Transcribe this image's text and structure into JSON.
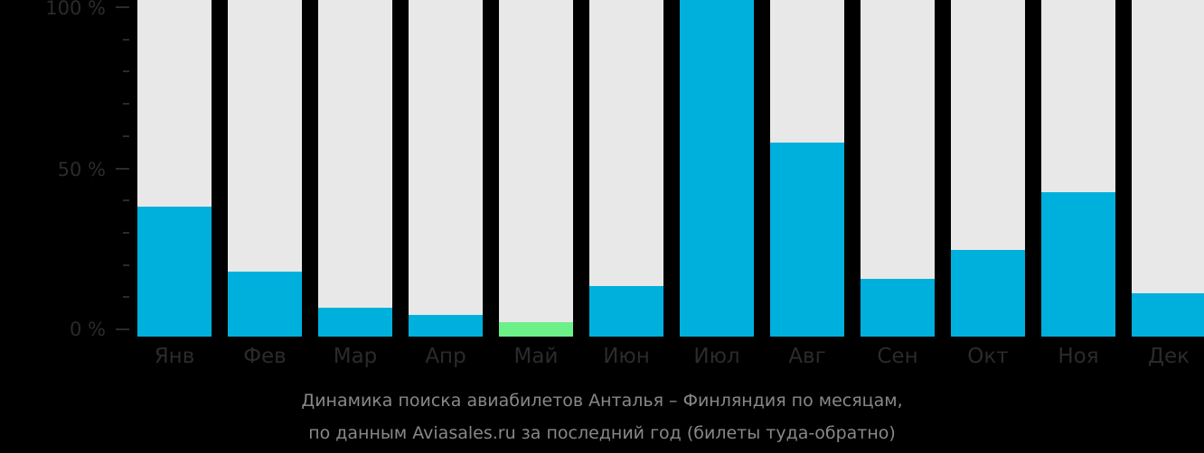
{
  "chart_data": {
    "type": "bar",
    "title": "Динамика поиска авиабилетов Анталья – Финляндия по месяцам, по данным Aviasales.ru за последний год (билеты туда-обратно)",
    "xlabel": "",
    "ylabel": "",
    "ylim": [
      0,
      100
    ],
    "yticks": [
      "0 %",
      "50 %",
      "100 %"
    ],
    "categories": [
      "Янв",
      "Фев",
      "Мар",
      "Апр",
      "Май",
      "Июн",
      "Июл",
      "Авг",
      "Сен",
      "Окт",
      "Ноя",
      "Дек"
    ],
    "values": [
      38.6,
      19.3,
      8.6,
      6.4,
      4.3,
      15.0,
      100,
      57.6,
      17.2,
      25.7,
      42.9,
      12.9
    ],
    "highlight_index": 4,
    "colors": {
      "bar": "#00b0dc",
      "highlight": "#6cf088",
      "track": "#e8e8e8",
      "background": "#000000"
    },
    "grid": false,
    "legend": null
  },
  "axis": {
    "y100": "100 %",
    "y50": "50 %",
    "y0": "0 %"
  },
  "caption": {
    "line1": "Динамика поиска авиабилетов Анталья – Финляндия по месяцам,",
    "line2": "по данным Aviasales.ru за последний год (билеты туда-обратно)"
  }
}
